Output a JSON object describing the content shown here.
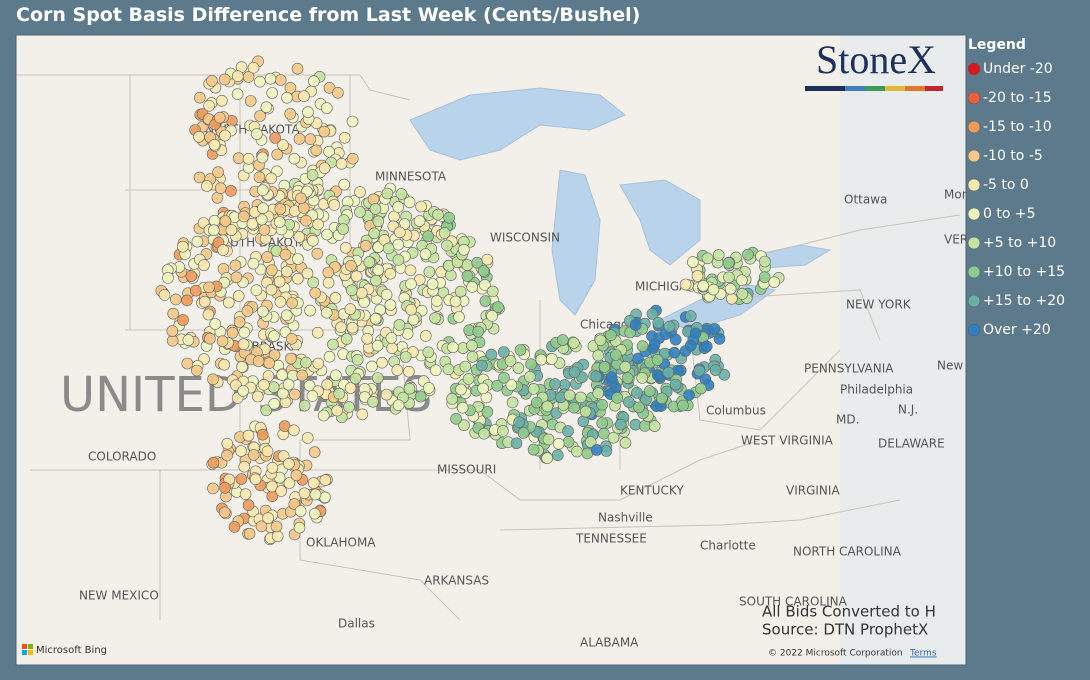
{
  "title": "Corn Spot Basis Difference from Last Week (Cents/Bushel)",
  "logo": "StoneX",
  "legend": {
    "title": "Legend",
    "items": [
      {
        "label": "Under -20",
        "color": "#d7191c"
      },
      {
        "label": "-20 to -15",
        "color": "#e8603c"
      },
      {
        "label": "-15 to -10",
        "color": "#f09a5a"
      },
      {
        "label": "-10 to -5",
        "color": "#f7c887"
      },
      {
        "label": "-5 to 0",
        "color": "#fce9b0"
      },
      {
        "label": "0 to +5",
        "color": "#eef5bf"
      },
      {
        "label": "+5 to +10",
        "color": "#c4e3a0"
      },
      {
        "label": "+10 to +15",
        "color": "#8fcb8c"
      },
      {
        "label": "+15 to +20",
        "color": "#6ab0a6"
      },
      {
        "label": "Over +20",
        "color": "#2f7fc1"
      }
    ]
  },
  "map_labels": [
    "UNITED STATES",
    "NORTH DAKOTA",
    "MINNESOTA",
    "SOUTH DAKOTA",
    "WISCONSIN",
    "MICHIGAN",
    "NEBRASKA",
    "COLORADO",
    "MISSOURI",
    "KENTUCKY",
    "TENNESSEE",
    "Nashville",
    "OKLAHOMA",
    "ARKANSAS",
    "NEW MEXICO",
    "Dallas",
    "ALABAMA",
    "Charlotte",
    "NORTH CAROLINA",
    "SOUTH CAROLINA",
    "VIRGINIA",
    "WEST VIRGINIA",
    "Philadelphia",
    "PENNSYLVANIA",
    "NEW YORK",
    "New York",
    "Ottawa",
    "Montreal",
    "VERMONT",
    "Columbus",
    "Chicago",
    "DELAWARE",
    "N.J.",
    "MD."
  ],
  "notes": [
    "All Bids Converted to H",
    "Source: DTN ProphetX"
  ],
  "copyright": "© 2022 Microsoft Corporation",
  "terms": "Terms",
  "bing": "Microsoft Bing"
}
